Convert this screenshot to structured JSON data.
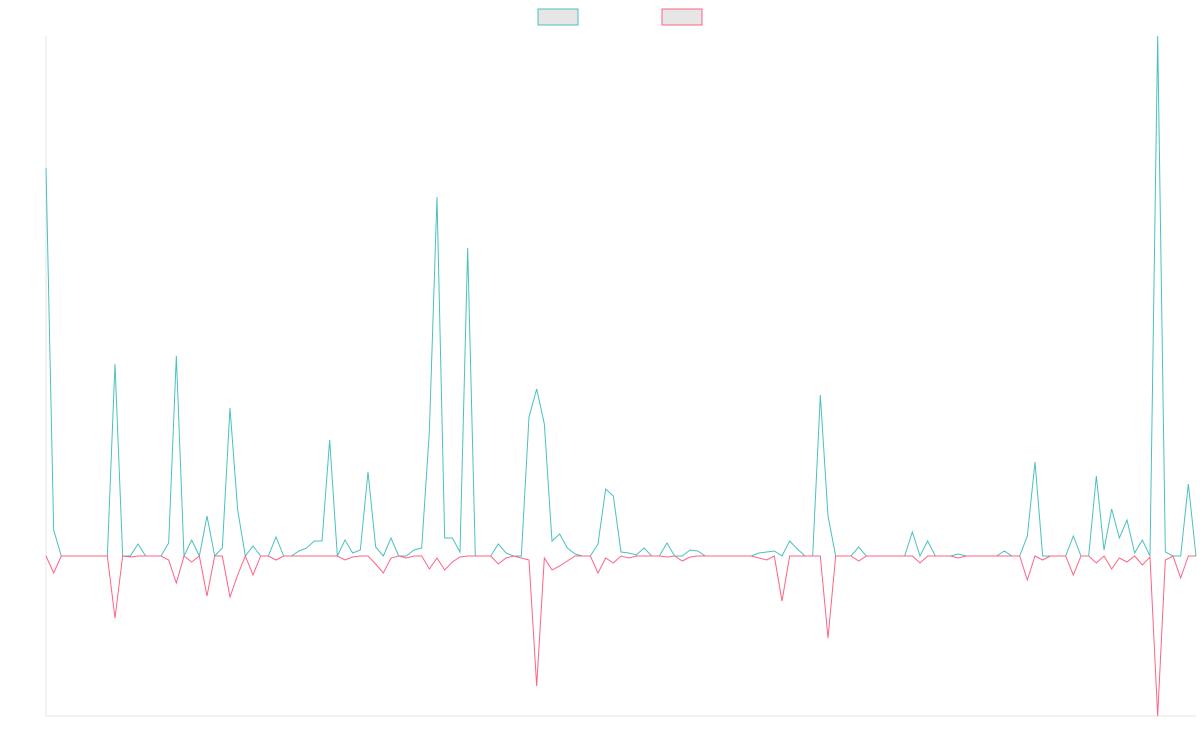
{
  "chart_data": {
    "type": "line",
    "categories": [
      null,
      null,
      null,
      null,
      null,
      null,
      null,
      null,
      null,
      null,
      null,
      null,
      null,
      null,
      null,
      null,
      null,
      null,
      null,
      null,
      null,
      null,
      null,
      null,
      null,
      null,
      null,
      null,
      null,
      null,
      null,
      null,
      null,
      null,
      null,
      null,
      null,
      null,
      null,
      null,
      null,
      null,
      null,
      null,
      null,
      null,
      null,
      null,
      null,
      null,
      null,
      null,
      null,
      null,
      null,
      null,
      null,
      null,
      null,
      null,
      null,
      null,
      null,
      null,
      null,
      null,
      null,
      null,
      null,
      null,
      null,
      null,
      null,
      null,
      null,
      null,
      null,
      null,
      null,
      null,
      null,
      null,
      null,
      null,
      null,
      null,
      null,
      null,
      null,
      null,
      null,
      null,
      null,
      null,
      null,
      null,
      null,
      null,
      null,
      null,
      null,
      null,
      null,
      null,
      null,
      null,
      null,
      null,
      null,
      null,
      null,
      null,
      null,
      null,
      null,
      null,
      null,
      null,
      null,
      null,
      null,
      null,
      null,
      null,
      null,
      null,
      null,
      null,
      null,
      null,
      null,
      null,
      null,
      null,
      null,
      null,
      null,
      null,
      null,
      null,
      null,
      null,
      null,
      null,
      null,
      null,
      null,
      null,
      null,
      null,
      null
    ],
    "series": [
      {
        "color": "#4bc0c0",
        "values": [
          19.4,
          1.3,
          0,
          0,
          0,
          0,
          0,
          0,
          0,
          9.6,
          0,
          0,
          0.6,
          0,
          0,
          0,
          0.65,
          10,
          0,
          0.8,
          0,
          2,
          0,
          0.4,
          7.4,
          2.3,
          0,
          0.5,
          0,
          0,
          0.95,
          0,
          0,
          0.25,
          0.4,
          0.75,
          0.75,
          5.8,
          0,
          0.8,
          0.15,
          0.3,
          4.2,
          0.45,
          0,
          0.9,
          0,
          0,
          0.3,
          0.4,
          6.2,
          17.95,
          0.9,
          0.9,
          0.2,
          15.4,
          0,
          0,
          0,
          0.6,
          0.15,
          0,
          0,
          6.95,
          8.35,
          6.6,
          0.75,
          1.1,
          0.4,
          0.1,
          0,
          0,
          0.6,
          3.35,
          3,
          0.2,
          0.15,
          0.05,
          0.4,
          0,
          0,
          0.65,
          0,
          0,
          0.3,
          0.25,
          0,
          0,
          0,
          0,
          0,
          0,
          0,
          0.15,
          0.2,
          0.25,
          0,
          0.75,
          0.35,
          0,
          0,
          8.05,
          2,
          0,
          0,
          0,
          0.45,
          0,
          0,
          0,
          0,
          0,
          0,
          1.2,
          0,
          0.75,
          0,
          0,
          0,
          0.1,
          0,
          0,
          0,
          0,
          0,
          0.25,
          0,
          0,
          1,
          4.7,
          0,
          0,
          0,
          0,
          1,
          0,
          0,
          4,
          0.3,
          2.35,
          0.9,
          1.8,
          0.15,
          0.8,
          0,
          26,
          0.2,
          0,
          0,
          3.6,
          0
        ]
      },
      {
        "color": "#ff6384",
        "values": [
          0,
          -0.85,
          0,
          0,
          0,
          0,
          0,
          0,
          0,
          -3.1,
          0,
          -0.05,
          0,
          0,
          0,
          0,
          -0.2,
          -1.35,
          0,
          -0.3,
          0,
          -2,
          0,
          0,
          -2.05,
          -0.95,
          0,
          -0.95,
          0,
          0,
          -0.2,
          0,
          0,
          0,
          0,
          0,
          0,
          0,
          0,
          -0.2,
          -0.05,
          0,
          0,
          -0.4,
          -0.85,
          -0.1,
          0,
          -0.1,
          0,
          0,
          -0.65,
          -0.1,
          -0.7,
          -0.3,
          -0.05,
          0,
          0,
          0,
          0,
          -0.4,
          -0.1,
          0,
          -0.1,
          -0.2,
          -6.5,
          -0.1,
          -0.7,
          -0.5,
          -0.25,
          0,
          0,
          0,
          -0.85,
          -0.1,
          -0.35,
          0,
          -0.1,
          0,
          0,
          0,
          0,
          -0.05,
          0,
          -0.25,
          -0.05,
          0,
          0,
          0,
          0,
          0,
          0,
          0,
          0,
          -0.1,
          -0.2,
          0,
          -2.25,
          0,
          0,
          0,
          0,
          0,
          -4.1,
          0,
          0,
          0,
          -0.25,
          0,
          0,
          0,
          0,
          0,
          0,
          0,
          -0.35,
          0,
          0,
          0,
          0,
          -0.1,
          0,
          0,
          0,
          0,
          0,
          0,
          0,
          0,
          -1.2,
          0,
          -0.2,
          0,
          0,
          0,
          -0.95,
          0,
          0,
          -0.35,
          0,
          -0.65,
          -0.1,
          -0.3,
          0,
          -0.45,
          -0.05,
          -8,
          -0.2,
          0,
          -1.1,
          0,
          0
        ]
      }
    ],
    "ylim": [
      -8,
      26
    ],
    "legend": "top"
  }
}
